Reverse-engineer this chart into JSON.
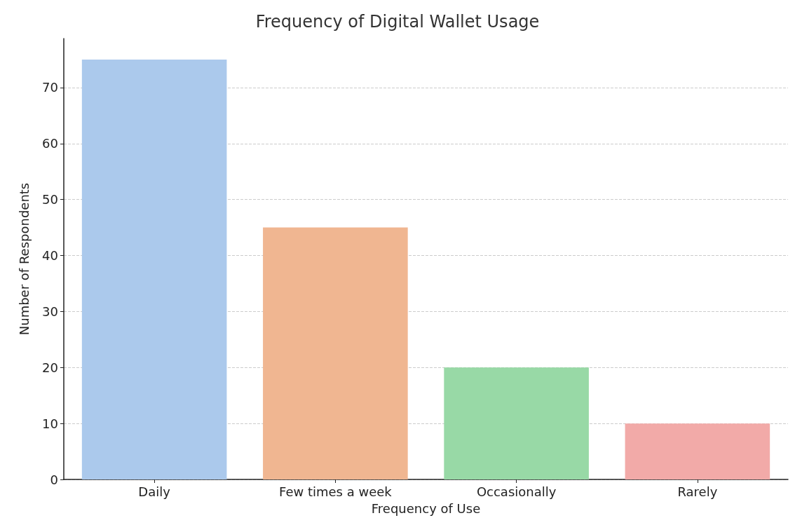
{
  "chart_data": {
    "type": "bar",
    "title": "Frequency of Digital Wallet Usage",
    "xlabel": "Frequency of Use",
    "ylabel": "Number of Respondents",
    "categories": [
      "Daily",
      "Few times a week",
      "Occasionally",
      "Rarely"
    ],
    "values": [
      75,
      45,
      20,
      10
    ],
    "colors": [
      "#abc9ec",
      "#f0b691",
      "#98d9a6",
      "#f2aaa8"
    ],
    "ylim": [
      0,
      78.75
    ],
    "yticks": [
      0,
      10,
      20,
      30,
      40,
      50,
      60,
      70
    ],
    "grid": "y"
  }
}
